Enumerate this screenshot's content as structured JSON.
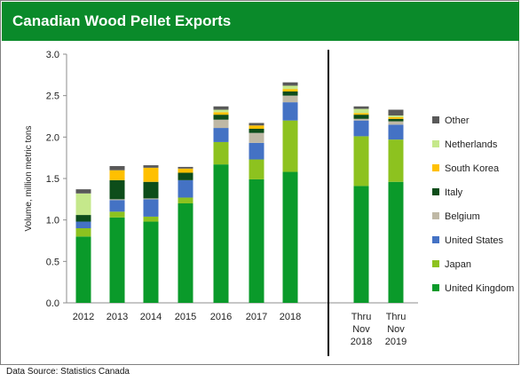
{
  "header": {
    "title": "Canadian Wood Pellet Exports"
  },
  "footer": {
    "source": "Data Source: Statistics Canada"
  },
  "chart_data": {
    "type": "bar",
    "stacked": true,
    "title": "Canadian Wood Pellet Exports",
    "xlabel": "",
    "ylabel": "Volume, million metric tons",
    "ylim": [
      0,
      3.0
    ],
    "yticks": [
      "0.0",
      "0.5",
      "1.0",
      "1.5",
      "2.0",
      "2.5",
      "3.0"
    ],
    "grid": false,
    "legend_position": "right",
    "categories": [
      [
        "2012"
      ],
      [
        "2013"
      ],
      [
        "2014"
      ],
      [
        "2015"
      ],
      [
        "2016"
      ],
      [
        "2017"
      ],
      [
        "2018"
      ],
      [
        "Thru",
        "Nov",
        "2018"
      ],
      [
        "Thru",
        "Nov",
        "2019"
      ]
    ],
    "series": [
      {
        "name": "United Kingdom",
        "color": "#0a9a2a",
        "values": [
          0.8,
          1.03,
          0.98,
          1.2,
          1.67,
          1.49,
          1.58,
          1.41,
          1.46
        ]
      },
      {
        "name": "Japan",
        "color": "#8dc21f",
        "values": [
          0.1,
          0.07,
          0.06,
          0.07,
          0.27,
          0.24,
          0.62,
          0.6,
          0.51
        ]
      },
      {
        "name": "United States",
        "color": "#4472c4",
        "values": [
          0.08,
          0.14,
          0.21,
          0.21,
          0.17,
          0.2,
          0.22,
          0.19,
          0.18
        ]
      },
      {
        "name": "Belgium",
        "color": "#bfb8a5",
        "values": [
          0.0,
          0.01,
          0.01,
          0.0,
          0.1,
          0.12,
          0.08,
          0.02,
          0.04
        ]
      },
      {
        "name": "Italy",
        "color": "#0d4d1a",
        "values": [
          0.08,
          0.23,
          0.2,
          0.09,
          0.06,
          0.05,
          0.05,
          0.05,
          0.03
        ]
      },
      {
        "name": "South Korea",
        "color": "#ffc000",
        "values": [
          0.0,
          0.12,
          0.17,
          0.05,
          0.03,
          0.04,
          0.03,
          0.02,
          0.02
        ]
      },
      {
        "name": "Netherlands",
        "color": "#c5e88b",
        "values": [
          0.26,
          0.0,
          0.0,
          0.0,
          0.03,
          0.0,
          0.04,
          0.05,
          0.02
        ]
      },
      {
        "name": "Other",
        "color": "#595959",
        "values": [
          0.05,
          0.05,
          0.03,
          0.02,
          0.04,
          0.03,
          0.04,
          0.03,
          0.07
        ]
      }
    ],
    "legend_order": [
      "Other",
      "Netherlands",
      "South Korea",
      "Italy",
      "Belgium",
      "United States",
      "Japan",
      "United Kingdom"
    ]
  }
}
